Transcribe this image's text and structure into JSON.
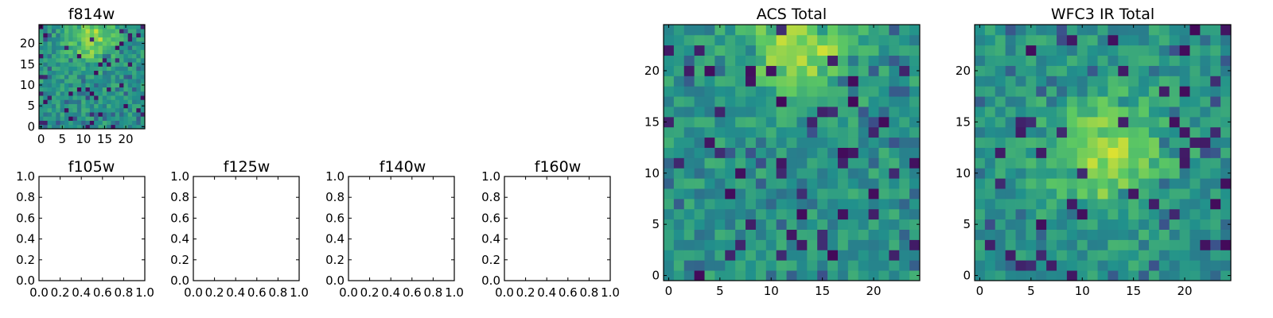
{
  "figure": {
    "background": "#ffffff",
    "colormap": [
      "#440154",
      "#3b528b",
      "#21918c",
      "#5ec962",
      "#fde725"
    ]
  },
  "chart_data": [
    {
      "type": "heatmap",
      "title": "f814w",
      "grid_size": 25,
      "xticks": [
        "0",
        "5",
        "10",
        "15",
        "20"
      ],
      "yticks": [
        "0",
        "5",
        "10",
        "15",
        "20"
      ],
      "seed": 11,
      "bright_spot": [
        12,
        21
      ],
      "dark_fraction": 0.07
    },
    {
      "type": "empty",
      "title": "f105w",
      "xticks": [
        "0.0",
        "0.2",
        "0.4",
        "0.6",
        "0.8",
        "1.0"
      ],
      "yticks": [
        "0.0",
        "0.2",
        "0.4",
        "0.6",
        "0.8",
        "1.0"
      ]
    },
    {
      "type": "empty",
      "title": "f125w",
      "xticks": [
        "0.0",
        "0.2",
        "0.4",
        "0.6",
        "0.8",
        "1.0"
      ],
      "yticks": [
        "0.0",
        "0.2",
        "0.4",
        "0.6",
        "0.8",
        "1.0"
      ]
    },
    {
      "type": "empty",
      "title": "f140w",
      "xticks": [
        "0.0",
        "0.2",
        "0.4",
        "0.6",
        "0.8",
        "1.0"
      ],
      "yticks": [
        "0.0",
        "0.2",
        "0.4",
        "0.6",
        "0.8",
        "1.0"
      ]
    },
    {
      "type": "empty",
      "title": "f160w",
      "xticks": [
        "0.0",
        "0.2",
        "0.4",
        "0.6",
        "0.8",
        "1.0"
      ],
      "yticks": [
        "0.0",
        "0.2",
        "0.4",
        "0.6",
        "0.8",
        "1.0"
      ]
    },
    {
      "type": "heatmap",
      "title": "ACS Total",
      "grid_size": 25,
      "xticks": [
        "0",
        "5",
        "10",
        "15",
        "20"
      ],
      "yticks": [
        "0",
        "5",
        "10",
        "15",
        "20"
      ],
      "seed": 7,
      "bright_spot": [
        13,
        23
      ],
      "dark_fraction": 0.06
    },
    {
      "type": "heatmap",
      "title": "WFC3 IR Total",
      "grid_size": 25,
      "xticks": [
        "0",
        "5",
        "10",
        "15",
        "20"
      ],
      "yticks": [
        "0",
        "5",
        "10",
        "15",
        "20"
      ],
      "seed": 23,
      "bright_spot": [
        12,
        12
      ],
      "dark_fraction": 0.06
    }
  ]
}
